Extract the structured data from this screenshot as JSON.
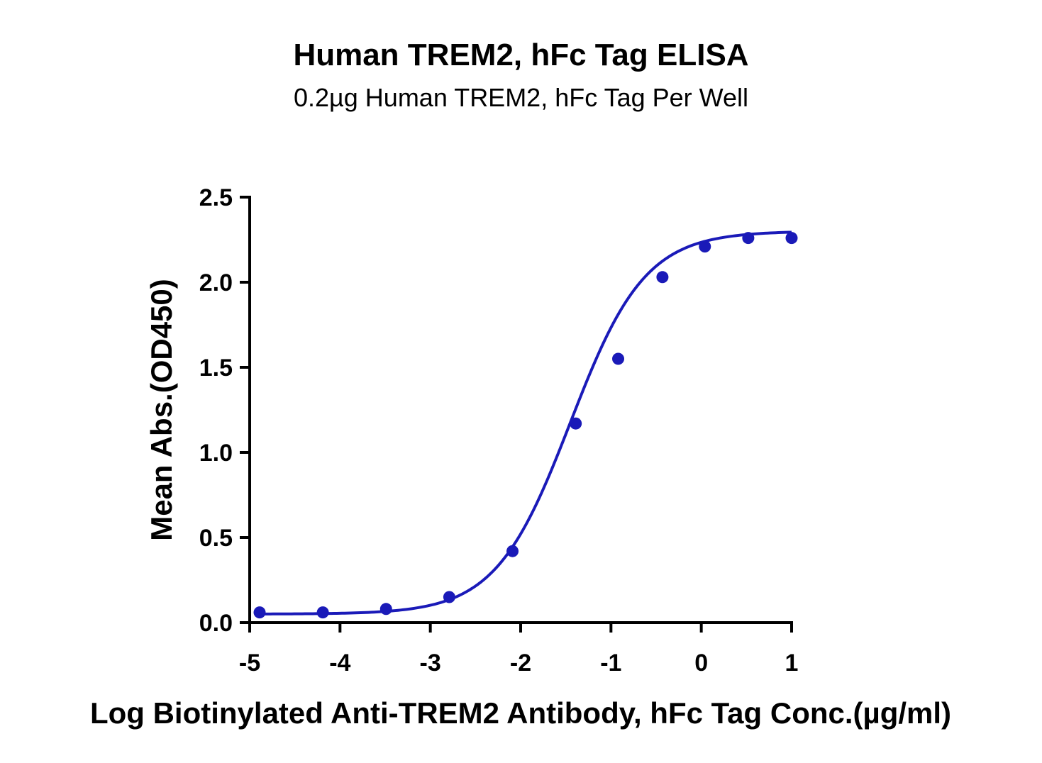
{
  "chart_data": {
    "type": "scatter",
    "title": "Human TREM2, hFc Tag ELISA",
    "subtitle": "0.2µg Human TREM2, hFc Tag Per Well",
    "xlabel": "Log Biotinylated Anti-TREM2 Antibody, hFc Tag Conc.(µg/ml)",
    "ylabel": "Mean Abs.(OD450)",
    "xlim": [
      -5,
      1
    ],
    "ylim": [
      0,
      2.5
    ],
    "xticks": [
      -5,
      -4,
      -3,
      -2,
      -1,
      0,
      1
    ],
    "xtick_labels": [
      "-5",
      "-4",
      "-3",
      "-2",
      "-1",
      "0",
      "1"
    ],
    "yticks": [
      0,
      0.5,
      1.0,
      1.5,
      2.0,
      2.5
    ],
    "ytick_labels": [
      "0.0",
      "0.5",
      "1.0",
      "1.5",
      "2.0",
      "2.5"
    ],
    "grid": false,
    "color": "#1a1ab8",
    "series": [
      {
        "x": [
          -4.89,
          -4.19,
          -3.49,
          -2.79,
          -2.09,
          -1.39,
          -0.92,
          -0.43,
          0.04,
          0.52,
          1.0
        ],
        "y": [
          0.06,
          0.06,
          0.08,
          0.15,
          0.42,
          1.17,
          1.55,
          2.03,
          2.21,
          2.26,
          2.26
        ]
      }
    ],
    "fit": {
      "type": "4PL sigmoid",
      "bottom": 0.05,
      "top": 2.3,
      "logEC50": -1.45,
      "hillslope": 1.05
    }
  }
}
